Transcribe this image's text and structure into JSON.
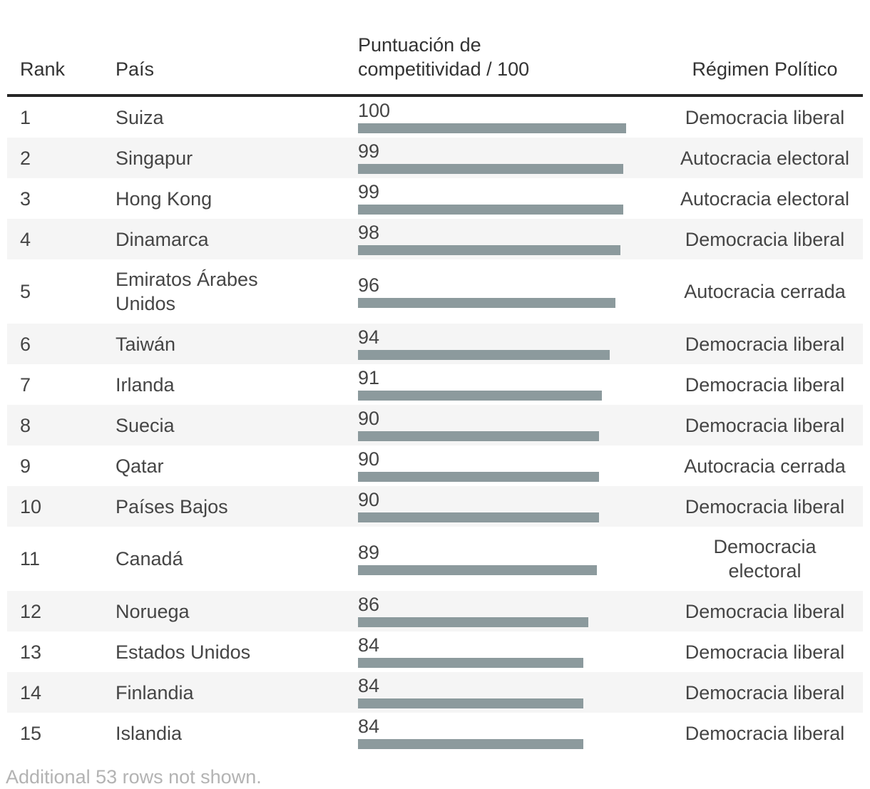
{
  "chart_data": {
    "type": "table",
    "columns": {
      "rank": "Rank",
      "country": "País",
      "score": "Puntuación de competitividad / 100",
      "regime": "Régimen Político"
    },
    "rows": [
      {
        "rank": "1",
        "country": "Suiza",
        "score": 100,
        "regime": "Democracia liberal"
      },
      {
        "rank": "2",
        "country": "Singapur",
        "score": 99,
        "regime": "Autocracia electoral"
      },
      {
        "rank": "3",
        "country": "Hong Kong",
        "score": 99,
        "regime": "Autocracia electoral"
      },
      {
        "rank": "4",
        "country": "Dinamarca",
        "score": 98,
        "regime": "Democracia liberal"
      },
      {
        "rank": "5",
        "country": "Emiratos Árabes Unidos",
        "score": 96,
        "regime": "Autocracia cerrada"
      },
      {
        "rank": "6",
        "country": "Taiwán",
        "score": 94,
        "regime": "Democracia liberal"
      },
      {
        "rank": "7",
        "country": "Irlanda",
        "score": 91,
        "regime": "Democracia liberal"
      },
      {
        "rank": "8",
        "country": "Suecia",
        "score": 90,
        "regime": "Democracia liberal"
      },
      {
        "rank": "9",
        "country": "Qatar",
        "score": 90,
        "regime": "Autocracia cerrada"
      },
      {
        "rank": "10",
        "country": "Países Bajos",
        "score": 90,
        "regime": "Democracia liberal"
      },
      {
        "rank": "11",
        "country": "Canadá",
        "score": 89,
        "regime": "Democracia electoral"
      },
      {
        "rank": "12",
        "country": "Noruega",
        "score": 86,
        "regime": "Democracia liberal"
      },
      {
        "rank": "13",
        "country": "Estados Unidos",
        "score": 84,
        "regime": "Democracia liberal"
      },
      {
        "rank": "14",
        "country": "Finlandia",
        "score": 84,
        "regime": "Democracia liberal"
      },
      {
        "rank": "15",
        "country": "Islandia",
        "score": 84,
        "regime": "Democracia liberal"
      }
    ],
    "bar": {
      "column": "score",
      "range": [
        0,
        100
      ],
      "color": "#8c9a9d"
    },
    "footer_note": "Additional 53 rows not shown."
  }
}
